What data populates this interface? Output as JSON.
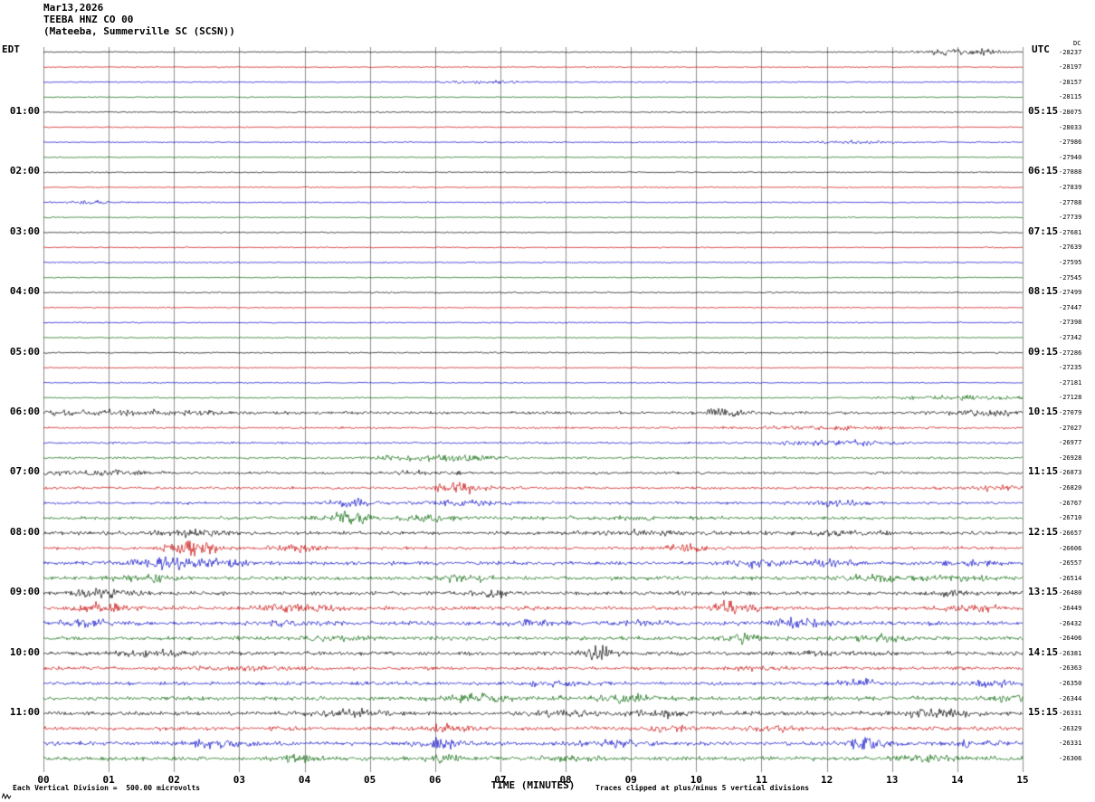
{
  "header": {
    "date": "Mar13,2026",
    "station": "TEEBA HNZ CO 00",
    "location": "(Mateeba, Summerville SC (SCSN))"
  },
  "axes": {
    "left_timezone": "EDT",
    "right_timezone": "UTC",
    "dc_label": "DC",
    "xlabel": "TIME (MINUTES)",
    "x_ticks": [
      "00",
      "01",
      "02",
      "03",
      "04",
      "05",
      "06",
      "07",
      "08",
      "09",
      "10",
      "11",
      "12",
      "13",
      "14",
      "15"
    ]
  },
  "footer": {
    "scale_note": "Each Vertical Division =  500.00 microvolts",
    "clip_note": "Traces clipped at plus/minus 5 vertical divisions"
  },
  "colors": {
    "black": "#000000",
    "red": "#c80000",
    "blue": "#0000c8",
    "green": "#006400",
    "grid": "#8f8f8f"
  },
  "chart_data": {
    "type": "line",
    "title": "TEEBA HNZ CO 00 helicorder, Mar13,2026",
    "x_range_minutes": [
      0,
      15
    ],
    "minutes_per_row": 15,
    "rows_count": 48,
    "rows": [
      {
        "color": "black",
        "count": "-28237",
        "noise": 0.45,
        "bursts": [
          [
            13.9,
            1.8,
            0.35
          ],
          [
            14.35,
            1.4,
            0.25
          ]
        ]
      },
      {
        "color": "red",
        "count": "-28197",
        "noise": 0.4,
        "bursts": []
      },
      {
        "color": "blue",
        "count": "-28157",
        "noise": 0.45,
        "bursts": [
          [
            6.8,
            0.9,
            0.4
          ]
        ]
      },
      {
        "color": "green",
        "count": "-28115",
        "noise": 0.4,
        "bursts": []
      },
      {
        "color": "black",
        "count": "-28075",
        "left": "01:00",
        "right": "05:15",
        "noise": 0.45,
        "bursts": []
      },
      {
        "color": "red",
        "count": "-28033",
        "noise": 0.4,
        "bursts": []
      },
      {
        "color": "blue",
        "count": "-27986",
        "noise": 0.45,
        "bursts": [
          [
            12.5,
            0.8,
            0.5
          ]
        ]
      },
      {
        "color": "green",
        "count": "-27940",
        "noise": 0.4,
        "bursts": []
      },
      {
        "color": "black",
        "count": "-27888",
        "left": "02:00",
        "right": "06:15",
        "noise": 0.45,
        "bursts": []
      },
      {
        "color": "red",
        "count": "-27839",
        "noise": 0.4,
        "bursts": []
      },
      {
        "color": "blue",
        "count": "-27788",
        "noise": 0.45,
        "bursts": [
          [
            0.7,
            0.8,
            0.3
          ]
        ]
      },
      {
        "color": "green",
        "count": "-27739",
        "noise": 0.4,
        "bursts": []
      },
      {
        "color": "black",
        "count": "-27681",
        "left": "03:00",
        "right": "07:15",
        "noise": 0.45,
        "bursts": []
      },
      {
        "color": "red",
        "count": "-27639",
        "noise": 0.4,
        "bursts": []
      },
      {
        "color": "blue",
        "count": "-27595",
        "noise": 0.45,
        "bursts": []
      },
      {
        "color": "green",
        "count": "-27545",
        "noise": 0.4,
        "bursts": []
      },
      {
        "color": "black",
        "count": "-27499",
        "left": "04:00",
        "right": "08:15",
        "noise": 0.5,
        "bursts": []
      },
      {
        "color": "red",
        "count": "-27447",
        "noise": 0.4,
        "bursts": []
      },
      {
        "color": "blue",
        "count": "-27398",
        "noise": 0.45,
        "bursts": []
      },
      {
        "color": "green",
        "count": "-27342",
        "noise": 0.4,
        "bursts": []
      },
      {
        "color": "black",
        "count": "-27286",
        "left": "05:00",
        "right": "09:15",
        "noise": 0.5,
        "bursts": []
      },
      {
        "color": "red",
        "count": "-27235",
        "noise": 0.4,
        "bursts": []
      },
      {
        "color": "blue",
        "count": "-27181",
        "noise": 0.45,
        "bursts": []
      },
      {
        "color": "green",
        "count": "-27128",
        "noise": 0.5,
        "bursts": [
          [
            14.0,
            1.1,
            0.9
          ]
        ]
      },
      {
        "color": "black",
        "count": "-27079",
        "left": "06:00",
        "right": "10:15",
        "noise": 1.0,
        "bursts": [
          [
            0.6,
            1.4,
            0.7
          ],
          [
            2.0,
            1.1,
            0.6
          ],
          [
            10.4,
            2.8,
            0.25
          ],
          [
            14.5,
            1.4,
            0.4
          ]
        ]
      },
      {
        "color": "red",
        "count": "-27027",
        "noise": 0.7,
        "bursts": [
          [
            12.0,
            1.0,
            0.8
          ]
        ]
      },
      {
        "color": "blue",
        "count": "-26977",
        "noise": 0.7,
        "bursts": [
          [
            11.8,
            1.4,
            0.5
          ],
          [
            12.6,
            1.0,
            0.3
          ]
        ]
      },
      {
        "color": "green",
        "count": "-26928",
        "noise": 0.8,
        "bursts": [
          [
            5.5,
            1.4,
            0.3
          ],
          [
            6.35,
            2.4,
            0.35
          ]
        ]
      },
      {
        "color": "black",
        "count": "-26873",
        "left": "07:00",
        "right": "11:15",
        "noise": 0.9,
        "bursts": [
          [
            0.8,
            1.4,
            0.5
          ],
          [
            5.8,
            1.0,
            0.4
          ]
        ]
      },
      {
        "color": "red",
        "count": "-26820",
        "noise": 0.9,
        "bursts": [
          [
            6.4,
            3.8,
            0.3
          ],
          [
            14.6,
            1.4,
            0.4
          ]
        ]
      },
      {
        "color": "blue",
        "count": "-26767",
        "noise": 0.9,
        "bursts": [
          [
            4.7,
            2.4,
            0.25
          ],
          [
            6.4,
            1.4,
            0.5
          ],
          [
            12.1,
            1.9,
            0.3
          ]
        ]
      },
      {
        "color": "green",
        "count": "-26710",
        "noise": 1.1,
        "bursts": [
          [
            4.6,
            4.2,
            0.25
          ],
          [
            5.8,
            1.5,
            0.4
          ],
          [
            9.0,
            1.0,
            0.5
          ]
        ]
      },
      {
        "color": "black",
        "count": "-26657",
        "left": "08:00",
        "right": "12:15",
        "noise": 1.2,
        "bursts": [
          [
            2.3,
            1.5,
            0.5
          ],
          [
            9.2,
            1.0,
            0.6
          ],
          [
            12.2,
            1.2,
            0.5
          ]
        ]
      },
      {
        "color": "red",
        "count": "-26606",
        "noise": 1.0,
        "bursts": [
          [
            2.3,
            4.2,
            0.3
          ],
          [
            3.9,
            1.9,
            0.3
          ],
          [
            9.8,
            2.4,
            0.2
          ]
        ]
      },
      {
        "color": "blue",
        "count": "-26557",
        "noise": 1.2,
        "bursts": [
          [
            1.9,
            3.3,
            0.4
          ],
          [
            2.7,
            2.4,
            0.3
          ],
          [
            10.9,
            1.9,
            0.3
          ],
          [
            12.1,
            1.7,
            0.3
          ],
          [
            14.3,
            1.4,
            0.3
          ]
        ]
      },
      {
        "color": "green",
        "count": "-26514",
        "noise": 1.3,
        "bursts": [
          [
            1.6,
            2.4,
            0.3
          ],
          [
            6.5,
            1.9,
            0.3
          ],
          [
            12.8,
            1.9,
            0.4
          ],
          [
            14.0,
            1.4,
            0.3
          ]
        ]
      },
      {
        "color": "black",
        "count": "-26480",
        "left": "09:00",
        "right": "13:15",
        "noise": 1.3,
        "bursts": [
          [
            0.85,
            3.3,
            0.3
          ],
          [
            6.9,
            2.4,
            0.2
          ],
          [
            13.9,
            1.4,
            0.3
          ]
        ]
      },
      {
        "color": "red",
        "count": "-26449",
        "noise": 1.3,
        "bursts": [
          [
            0.9,
            2.4,
            0.3
          ],
          [
            3.8,
            2.4,
            0.4
          ],
          [
            10.55,
            4.2,
            0.25
          ],
          [
            14.2,
            1.9,
            0.3
          ]
        ]
      },
      {
        "color": "blue",
        "count": "-26432",
        "noise": 1.3,
        "bursts": [
          [
            0.7,
            1.9,
            0.3
          ],
          [
            3.8,
            1.4,
            0.3
          ],
          [
            7.4,
            1.4,
            0.3
          ],
          [
            9.0,
            1.4,
            0.3
          ],
          [
            11.55,
            2.8,
            0.3
          ]
        ]
      },
      {
        "color": "green",
        "count": "-26406",
        "noise": 1.3,
        "bursts": [
          [
            4.5,
            1.4,
            0.3
          ],
          [
            10.7,
            3.8,
            0.15
          ],
          [
            12.8,
            1.4,
            0.3
          ]
        ]
      },
      {
        "color": "black",
        "count": "-26381",
        "left": "10:00",
        "right": "14:15",
        "noise": 1.3,
        "bursts": [
          [
            1.7,
            1.4,
            0.4
          ],
          [
            8.5,
            4.2,
            0.15
          ],
          [
            12.1,
            1.2,
            0.4
          ]
        ]
      },
      {
        "color": "red",
        "count": "-26363",
        "noise": 1.1,
        "bursts": [
          [
            3.0,
            1.0,
            0.5
          ],
          [
            11.0,
            1.0,
            0.5
          ]
        ]
      },
      {
        "color": "blue",
        "count": "-26350",
        "noise": 1.2,
        "bursts": [
          [
            7.8,
            1.4,
            0.3
          ],
          [
            12.5,
            1.9,
            0.25
          ],
          [
            14.5,
            1.9,
            0.3
          ]
        ]
      },
      {
        "color": "green",
        "count": "-26344",
        "noise": 1.4,
        "bursts": [
          [
            6.7,
            1.9,
            0.4
          ],
          [
            8.8,
            1.9,
            0.4
          ],
          [
            14.8,
            1.9,
            0.2
          ]
        ]
      },
      {
        "color": "black",
        "count": "-26331",
        "left": "11:00",
        "right": "15:15",
        "noise": 1.4,
        "bursts": [
          [
            4.8,
            1.9,
            0.4
          ],
          [
            8.0,
            1.4,
            0.3
          ],
          [
            9.4,
            1.9,
            0.25
          ],
          [
            13.7,
            2.4,
            0.4
          ]
        ]
      },
      {
        "color": "red",
        "count": "-26329",
        "noise": 1.3,
        "bursts": [
          [
            6.2,
            1.9,
            0.3
          ],
          [
            9.5,
            1.4,
            0.3
          ],
          [
            11.2,
            1.4,
            0.3
          ]
        ]
      },
      {
        "color": "blue",
        "count": "-26331",
        "noise": 1.3,
        "bursts": [
          [
            2.6,
            1.9,
            0.3
          ],
          [
            6.1,
            2.8,
            0.25
          ],
          [
            8.7,
            1.9,
            0.3
          ],
          [
            12.6,
            3.8,
            0.2
          ],
          [
            14.3,
            1.4,
            0.3
          ]
        ]
      },
      {
        "color": "green",
        "count": "-26306",
        "noise": 1.4,
        "bursts": [
          [
            3.9,
            3.8,
            0.2
          ],
          [
            6.1,
            1.9,
            0.3
          ],
          [
            8.1,
            1.4,
            0.3
          ],
          [
            13.5,
            1.4,
            0.4
          ]
        ]
      }
    ]
  }
}
